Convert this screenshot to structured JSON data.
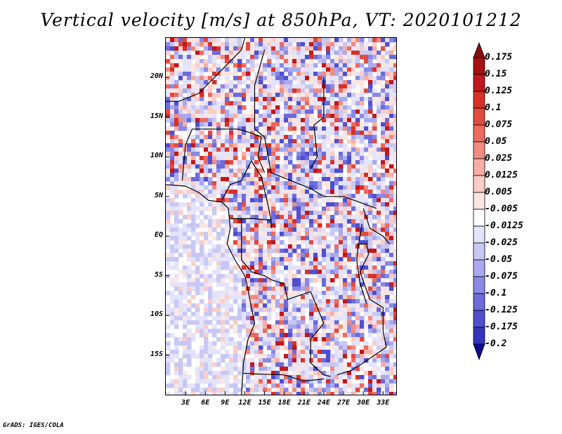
{
  "title": "Vertical velocity [m/s] at 850hPa, VT: 2020101212",
  "footer": "GrADS: IGES/COLA",
  "map": {
    "lon_range": [
      0,
      35
    ],
    "lat_range": [
      -20,
      25
    ],
    "lat_ticks": [
      {
        "value": 20,
        "label": "20N"
      },
      {
        "value": 15,
        "label": "15N"
      },
      {
        "value": 10,
        "label": "10N"
      },
      {
        "value": 5,
        "label": "5N"
      },
      {
        "value": 0,
        "label": "EQ"
      },
      {
        "value": -5,
        "label": "5S"
      },
      {
        "value": -10,
        "label": "10S"
      },
      {
        "value": -15,
        "label": "15S"
      }
    ],
    "lon_ticks": [
      {
        "value": 3,
        "label": "3E"
      },
      {
        "value": 6,
        "label": "6E"
      },
      {
        "value": 9,
        "label": "9E"
      },
      {
        "value": 12,
        "label": "12E"
      },
      {
        "value": 15,
        "label": "15E"
      },
      {
        "value": 18,
        "label": "18E"
      },
      {
        "value": 21,
        "label": "21E"
      },
      {
        "value": 24,
        "label": "24E"
      },
      {
        "value": 27,
        "label": "27E"
      },
      {
        "value": 30,
        "label": "30E"
      },
      {
        "value": 33,
        "label": "33E"
      }
    ]
  },
  "colorbar": {
    "levels": [
      {
        "label": "0.175",
        "color": "#a50f15"
      },
      {
        "label": "0.15",
        "color": "#c0181c"
      },
      {
        "label": "0.125",
        "color": "#d73027"
      },
      {
        "label": "0.1",
        "color": "#e34a40"
      },
      {
        "label": "0.075",
        "color": "#ec6a5e"
      },
      {
        "label": "0.05",
        "color": "#f28b80"
      },
      {
        "label": "0.025",
        "color": "#f7aea4"
      },
      {
        "label": "0.0125",
        "color": "#fbcdc6"
      },
      {
        "label": "0.005",
        "color": "#fde6e2"
      },
      {
        "label": "-0.005",
        "color": "#ffffff"
      },
      {
        "label": "-0.0125",
        "color": "#e3e3fb"
      },
      {
        "label": "-0.025",
        "color": "#c8c8f5"
      },
      {
        "label": "-0.05",
        "color": "#a9a9ee"
      },
      {
        "label": "-0.075",
        "color": "#8a8ae6"
      },
      {
        "label": "-0.1",
        "color": "#6b6bdc"
      },
      {
        "label": "-0.125",
        "color": "#4f4fd0"
      },
      {
        "label": "-0.175",
        "color": "#3434c0"
      },
      {
        "label": "-0.2",
        "color": "#1d1daa"
      }
    ],
    "top_cap_color": "#8b0a10",
    "bottom_cap_color": "#0c0c8c"
  }
}
